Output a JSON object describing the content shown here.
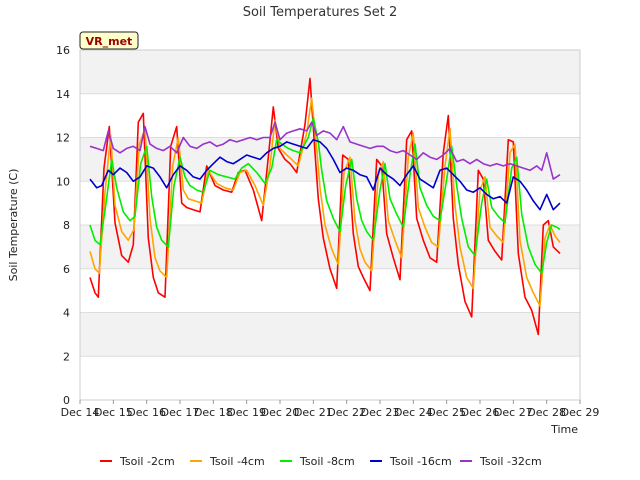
{
  "chart_data": {
    "type": "line",
    "title": "Soil Temperatures Set 2",
    "xlabel": "Time",
    "ylabel": "Soil Temperature (C)",
    "badge": "VR_met",
    "xlim": [
      14,
      29
    ],
    "ylim": [
      0,
      16
    ],
    "yticks": [
      0,
      2,
      4,
      6,
      8,
      10,
      12,
      14,
      16
    ],
    "xticks": [
      {
        "x": 14,
        "label": "Dec 14"
      },
      {
        "x": 15,
        "label": "Dec 15"
      },
      {
        "x": 16,
        "label": "Dec 16"
      },
      {
        "x": 17,
        "label": "Dec 17"
      },
      {
        "x": 18,
        "label": "Dec 18"
      },
      {
        "x": 19,
        "label": "Dec 19"
      },
      {
        "x": 20,
        "label": "Dec 20"
      },
      {
        "x": 21,
        "label": "Dec 21"
      },
      {
        "x": 22,
        "label": "Dec 22"
      },
      {
        "x": 23,
        "label": "Dec 23"
      },
      {
        "x": 24,
        "label": "Dec 24"
      },
      {
        "x": 25,
        "label": "Dec 25"
      },
      {
        "x": 26,
        "label": "Dec 26"
      },
      {
        "x": 27,
        "label": "Dec 27"
      },
      {
        "x": 28,
        "label": "Dec 28"
      },
      {
        "x": 29,
        "label": "Dec 29"
      }
    ],
    "grid": true,
    "legend_position": "bottom",
    "series": [
      {
        "name": "Tsoil -2cm",
        "color": "#ff0000",
        "x": [
          14.3,
          14.45,
          14.55,
          14.72,
          14.88,
          15.05,
          15.25,
          15.45,
          15.6,
          15.75,
          15.9,
          16.05,
          16.2,
          16.35,
          16.55,
          16.72,
          16.9,
          17.05,
          17.2,
          17.4,
          17.6,
          17.8,
          18.05,
          18.3,
          18.55,
          18.75,
          18.95,
          19.2,
          19.45,
          19.65,
          19.8,
          19.95,
          20.15,
          20.3,
          20.5,
          20.75,
          20.9,
          21.05,
          21.15,
          21.3,
          21.5,
          21.7,
          21.88,
          22.05,
          22.2,
          22.35,
          22.5,
          22.7,
          22.9,
          23.05,
          23.2,
          23.4,
          23.6,
          23.8,
          23.95,
          24.1,
          24.3,
          24.5,
          24.7,
          24.9,
          25.05,
          25.2,
          25.35,
          25.55,
          25.75,
          25.95,
          26.1,
          26.25,
          26.45,
          26.65,
          26.85,
          27.0,
          27.15,
          27.35,
          27.55,
          27.75,
          27.9,
          28.05,
          28.2,
          28.4
        ],
        "values": [
          5.6,
          4.9,
          4.7,
          10.6,
          12.5,
          8.1,
          6.6,
          6.3,
          7.1,
          12.7,
          13.1,
          7.4,
          5.6,
          4.9,
          4.7,
          11.6,
          12.5,
          9.0,
          8.8,
          8.7,
          8.6,
          10.7,
          9.8,
          9.6,
          9.5,
          10.4,
          10.5,
          9.6,
          8.2,
          11.1,
          13.4,
          11.5,
          11.0,
          10.8,
          10.4,
          12.6,
          14.7,
          11.3,
          9.2,
          7.4,
          6.0,
          5.1,
          11.2,
          11.0,
          7.6,
          6.1,
          5.6,
          5.0,
          11.0,
          10.7,
          7.6,
          6.5,
          5.5,
          11.9,
          12.3,
          8.3,
          7.3,
          6.5,
          6.3,
          11.3,
          13.0,
          8.3,
          6.2,
          4.5,
          3.8,
          10.5,
          10.1,
          7.3,
          6.8,
          6.4,
          11.9,
          11.8,
          6.7,
          4.7,
          4.1,
          3.0,
          8.0,
          8.2,
          7.0,
          6.7
        ]
      },
      {
        "name": "Tsoil -4cm",
        "color": "#ffa500",
        "x": [
          14.3,
          14.45,
          14.58,
          14.75,
          14.92,
          15.05,
          15.25,
          15.45,
          15.62,
          15.78,
          15.95,
          16.1,
          16.25,
          16.4,
          16.6,
          16.78,
          16.95,
          17.1,
          17.25,
          17.45,
          17.65,
          17.85,
          18.1,
          18.35,
          18.6,
          18.8,
          19.0,
          19.25,
          19.5,
          19.7,
          19.85,
          20.0,
          20.2,
          20.35,
          20.55,
          20.8,
          20.95,
          21.1,
          21.2,
          21.35,
          21.55,
          21.75,
          21.92,
          22.1,
          22.25,
          22.4,
          22.55,
          22.75,
          22.95,
          23.1,
          23.25,
          23.45,
          23.65,
          23.85,
          24.0,
          24.15,
          24.35,
          24.55,
          24.75,
          24.95,
          25.1,
          25.25,
          25.4,
          25.6,
          25.8,
          26.0,
          26.15,
          26.3,
          26.5,
          26.7,
          26.9,
          27.05,
          27.2,
          27.4,
          27.6,
          27.8,
          27.95,
          28.1,
          28.25,
          28.4
        ],
        "values": [
          6.8,
          6.0,
          5.8,
          9.5,
          12.1,
          8.9,
          7.7,
          7.3,
          7.8,
          11.7,
          12.4,
          8.3,
          6.5,
          5.9,
          5.6,
          10.7,
          12.0,
          9.6,
          9.2,
          9.1,
          9.0,
          10.5,
          9.9,
          9.7,
          9.6,
          10.4,
          10.5,
          9.8,
          8.9,
          10.7,
          12.8,
          11.5,
          11.2,
          11.0,
          10.7,
          12.2,
          13.8,
          11.5,
          9.7,
          8.0,
          6.9,
          6.2,
          10.4,
          11.1,
          8.2,
          6.9,
          6.3,
          5.9,
          10.3,
          10.9,
          8.2,
          7.3,
          6.5,
          11.1,
          12.2,
          8.8,
          7.9,
          7.2,
          7.0,
          10.7,
          12.4,
          8.9,
          7.0,
          5.6,
          5.1,
          9.6,
          10.2,
          7.9,
          7.5,
          7.2,
          11.3,
          11.7,
          7.3,
          5.6,
          4.9,
          4.3,
          7.4,
          8.0,
          7.5,
          7.2
        ]
      },
      {
        "name": "Tsoil -8cm",
        "color": "#00ee00",
        "x": [
          14.3,
          14.45,
          14.6,
          14.78,
          14.95,
          15.1,
          15.3,
          15.5,
          15.65,
          15.82,
          16.0,
          16.15,
          16.3,
          16.45,
          16.65,
          16.82,
          17.0,
          17.15,
          17.3,
          17.5,
          17.7,
          17.9,
          18.15,
          18.4,
          18.65,
          18.85,
          19.05,
          19.3,
          19.55,
          19.75,
          19.9,
          20.05,
          20.25,
          20.4,
          20.6,
          20.85,
          21.0,
          21.15,
          21.25,
          21.4,
          21.6,
          21.8,
          21.97,
          22.15,
          22.3,
          22.45,
          22.6,
          22.8,
          23.0,
          23.15,
          23.3,
          23.5,
          23.7,
          23.9,
          24.05,
          24.2,
          24.4,
          24.6,
          24.8,
          25.0,
          25.15,
          25.3,
          25.45,
          25.65,
          25.85,
          26.05,
          26.2,
          26.35,
          26.55,
          26.75,
          26.95,
          27.1,
          27.25,
          27.45,
          27.65,
          27.85,
          28.0,
          28.15,
          28.3,
          28.4
        ],
        "values": [
          8.0,
          7.3,
          7.1,
          9.0,
          11.0,
          9.7,
          8.6,
          8.2,
          8.4,
          10.8,
          11.6,
          9.3,
          7.9,
          7.3,
          7.0,
          9.8,
          11.1,
          10.2,
          9.8,
          9.6,
          9.5,
          10.5,
          10.3,
          10.2,
          10.1,
          10.6,
          10.8,
          10.4,
          9.9,
          10.6,
          11.9,
          11.7,
          11.5,
          11.4,
          11.3,
          12.0,
          12.9,
          11.8,
          10.5,
          9.1,
          8.3,
          7.7,
          9.8,
          11.0,
          9.2,
          8.2,
          7.7,
          7.3,
          9.6,
          10.8,
          9.2,
          8.5,
          7.9,
          10.3,
          11.7,
          9.7,
          8.9,
          8.4,
          8.2,
          10.1,
          11.6,
          9.8,
          8.3,
          7.0,
          6.6,
          9.0,
          10.1,
          8.8,
          8.4,
          8.1,
          10.6,
          11.1,
          8.5,
          7.0,
          6.2,
          5.8,
          7.2,
          8.0,
          7.9,
          7.8
        ]
      },
      {
        "name": "Tsoil -16cm",
        "color": "#0000cc",
        "x": [
          14.3,
          14.5,
          14.65,
          14.85,
          15.0,
          15.2,
          15.4,
          15.6,
          15.8,
          16.0,
          16.2,
          16.4,
          16.6,
          16.8,
          17.0,
          17.2,
          17.4,
          17.6,
          17.8,
          18.0,
          18.2,
          18.4,
          18.6,
          18.8,
          19.0,
          19.2,
          19.4,
          19.6,
          19.8,
          20.0,
          20.2,
          20.4,
          20.6,
          20.8,
          21.0,
          21.2,
          21.4,
          21.6,
          21.8,
          22.0,
          22.2,
          22.4,
          22.6,
          22.8,
          23.0,
          23.2,
          23.4,
          23.6,
          23.8,
          24.0,
          24.2,
          24.4,
          24.6,
          24.8,
          25.0,
          25.2,
          25.4,
          25.6,
          25.8,
          26.0,
          26.2,
          26.4,
          26.6,
          26.8,
          27.0,
          27.2,
          27.4,
          27.6,
          27.8,
          28.0,
          28.2,
          28.4
        ],
        "values": [
          10.1,
          9.7,
          9.8,
          10.5,
          10.3,
          10.6,
          10.4,
          10.0,
          10.2,
          10.7,
          10.6,
          10.2,
          9.7,
          10.3,
          10.7,
          10.5,
          10.2,
          10.1,
          10.5,
          10.8,
          11.1,
          10.9,
          10.8,
          11.0,
          11.2,
          11.1,
          11.0,
          11.3,
          11.5,
          11.6,
          11.8,
          11.7,
          11.6,
          11.5,
          11.9,
          11.8,
          11.5,
          11.0,
          10.4,
          10.6,
          10.5,
          10.3,
          10.2,
          9.6,
          10.6,
          10.3,
          10.1,
          9.8,
          10.3,
          10.7,
          10.1,
          9.9,
          9.7,
          10.5,
          10.6,
          10.3,
          10.0,
          9.6,
          9.5,
          9.7,
          9.4,
          9.2,
          9.3,
          9.0,
          10.2,
          10.0,
          9.6,
          9.1,
          8.7,
          9.4,
          8.7,
          9.0
        ]
      },
      {
        "name": "Tsoil -32cm",
        "color": "#9933cc",
        "x": [
          14.3,
          14.5,
          14.7,
          14.85,
          15.0,
          15.2,
          15.4,
          15.6,
          15.8,
          15.95,
          16.1,
          16.3,
          16.5,
          16.7,
          16.9,
          17.1,
          17.3,
          17.5,
          17.7,
          17.9,
          18.1,
          18.3,
          18.5,
          18.7,
          18.9,
          19.1,
          19.3,
          19.5,
          19.7,
          19.85,
          20.0,
          20.2,
          20.4,
          20.6,
          20.8,
          20.95,
          21.1,
          21.3,
          21.5,
          21.7,
          21.9,
          22.1,
          22.3,
          22.5,
          22.7,
          22.9,
          23.1,
          23.3,
          23.5,
          23.7,
          23.9,
          24.1,
          24.3,
          24.5,
          24.7,
          24.9,
          25.1,
          25.3,
          25.5,
          25.7,
          25.9,
          26.1,
          26.3,
          26.5,
          26.7,
          26.9,
          27.1,
          27.3,
          27.5,
          27.7,
          27.85,
          28.0,
          28.2,
          28.4
        ],
        "values": [
          11.6,
          11.5,
          11.4,
          12.3,
          11.5,
          11.3,
          11.5,
          11.6,
          11.4,
          12.5,
          11.7,
          11.5,
          11.4,
          11.6,
          11.3,
          12.0,
          11.6,
          11.5,
          11.7,
          11.8,
          11.6,
          11.7,
          11.9,
          11.8,
          11.9,
          12.0,
          11.9,
          12.0,
          12.0,
          12.7,
          11.9,
          12.2,
          12.3,
          12.4,
          12.3,
          12.7,
          12.1,
          12.3,
          12.2,
          11.9,
          12.5,
          11.8,
          11.7,
          11.6,
          11.5,
          11.6,
          11.6,
          11.4,
          11.3,
          11.4,
          11.2,
          11.0,
          11.3,
          11.1,
          11.0,
          11.2,
          11.5,
          10.9,
          11.0,
          10.8,
          11.0,
          10.8,
          10.7,
          10.8,
          10.7,
          10.8,
          10.7,
          10.6,
          10.5,
          10.7,
          10.5,
          11.3,
          10.1,
          10.3
        ]
      }
    ]
  }
}
